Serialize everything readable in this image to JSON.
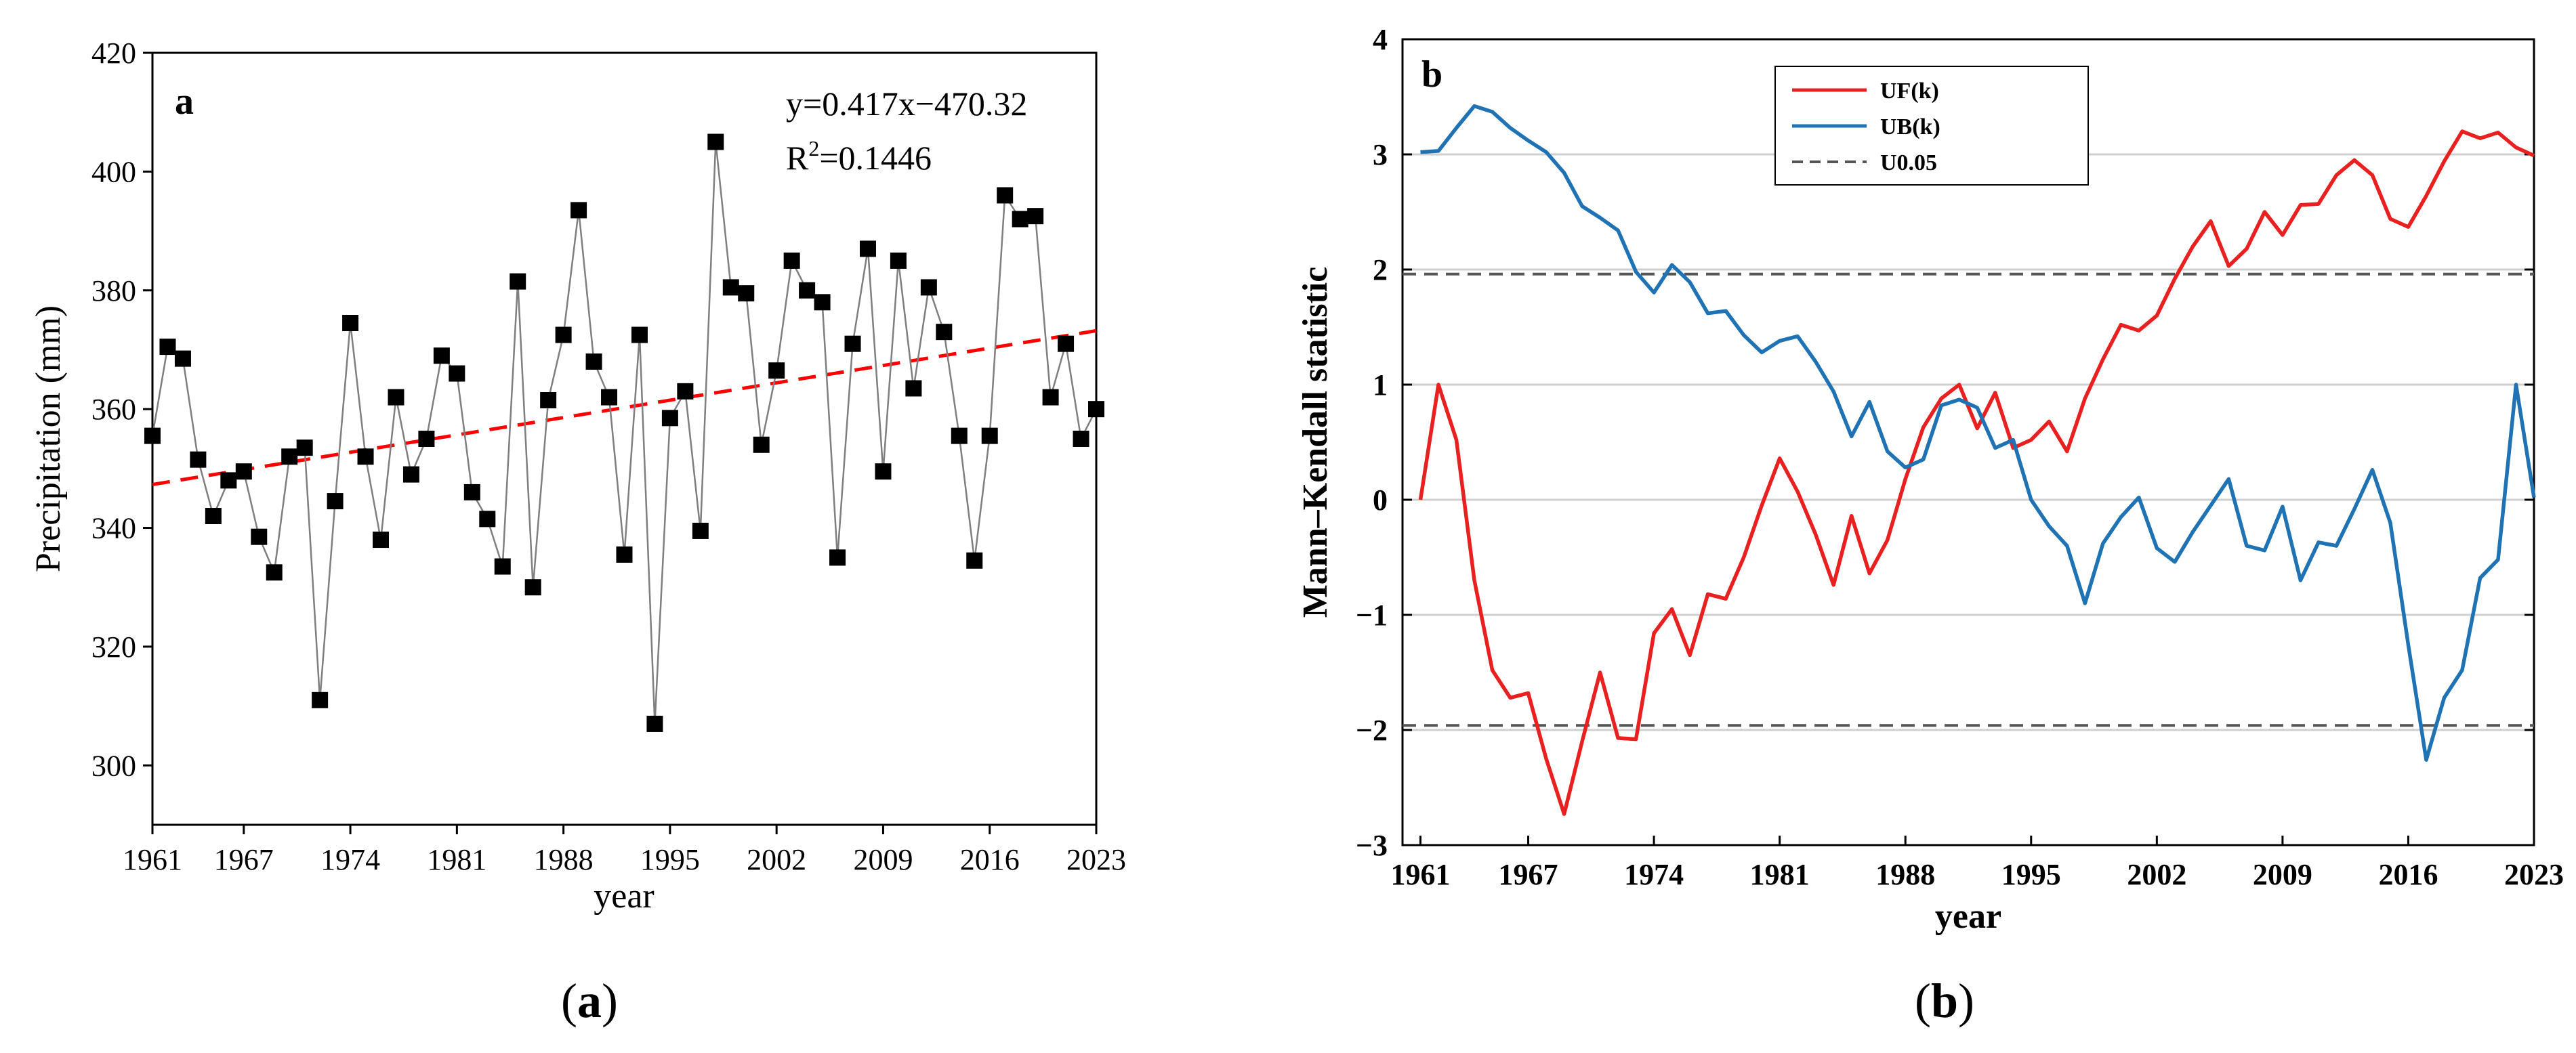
{
  "figure": {
    "captions": [
      "(a)",
      "(b)"
    ],
    "caption_letters": [
      "a",
      "b"
    ]
  },
  "chart_data": [
    {
      "type": "scatter",
      "panel_label": "a",
      "xlabel": "year",
      "ylabel": "Precipitation (mm)",
      "xlim": [
        1961,
        2023
      ],
      "ylim": [
        290,
        420
      ],
      "xticks": [
        1961,
        1967,
        1974,
        1981,
        1988,
        1995,
        2002,
        2009,
        2016,
        2023
      ],
      "yticks": [
        300,
        320,
        340,
        360,
        380,
        400,
        420
      ],
      "equation": "y=0.417x−470.32",
      "r2_prefix": "R",
      "r2_sup": "2",
      "r2_value": "=0.1446",
      "colors": {
        "series": "#000000",
        "line": "#7f7f7f",
        "trend": "#ff0000"
      },
      "series": [
        {
          "name": "Precipitation",
          "x": [
            1961,
            1962,
            1963,
            1964,
            1965,
            1966,
            1967,
            1968,
            1969,
            1970,
            1971,
            1972,
            1973,
            1974,
            1975,
            1976,
            1977,
            1978,
            1979,
            1980,
            1981,
            1982,
            1983,
            1984,
            1985,
            1986,
            1987,
            1988,
            1989,
            1990,
            1991,
            1992,
            1993,
            1994,
            1995,
            1996,
            1997,
            1998,
            1999,
            2000,
            2001,
            2002,
            2003,
            2004,
            2005,
            2006,
            2007,
            2008,
            2009,
            2010,
            2011,
            2012,
            2013,
            2014,
            2015,
            2016,
            2017,
            2018,
            2019,
            2020,
            2021,
            2022,
            2023
          ],
          "values": [
            355.5,
            370.5,
            368.5,
            351.5,
            342,
            348,
            349.5,
            338.5,
            332.5,
            352,
            353.5,
            311,
            344.5,
            374.5,
            352,
            338,
            362,
            349,
            355,
            369,
            366,
            346,
            341.5,
            333.5,
            381.5,
            330,
            361.5,
            372.5,
            393.5,
            368,
            362,
            335.5,
            372.5,
            307,
            358.5,
            363,
            339.5,
            405,
            380.5,
            379.5,
            354,
            366.5,
            385,
            380,
            378,
            335,
            371,
            387,
            349.5,
            385,
            363.5,
            380.5,
            373,
            355.5,
            334.5,
            355.5,
            396,
            392,
            392.5,
            362,
            371,
            355,
            360
          ]
        }
      ],
      "trend": {
        "x": [
          1961,
          2023
        ],
        "y": [
          347.3,
          373.2
        ]
      }
    },
    {
      "type": "line",
      "panel_label": "b",
      "xlabel": "year",
      "ylabel": "Mann–Kendall statistic",
      "xlim": [
        1960,
        2023
      ],
      "ylim": [
        -3,
        4
      ],
      "xticks": [
        1961,
        1967,
        1974,
        1981,
        1988,
        1995,
        2002,
        2009,
        2016,
        2023
      ],
      "yticks": [
        -3,
        -2,
        -1,
        0,
        1,
        2,
        3,
        4
      ],
      "ytick_labels": [
        "−3",
        "−2",
        "−1",
        "0",
        "1",
        "2",
        "3",
        "4"
      ],
      "grid": true,
      "legend": "top-center",
      "thresholds": [
        1.96,
        -1.96
      ],
      "series": [
        {
          "name": "UF(k)",
          "color": "#e8201f",
          "x": [
            1961,
            1962,
            1963,
            1964,
            1965,
            1966,
            1967,
            1968,
            1969,
            1970,
            1971,
            1972,
            1973,
            1974,
            1975,
            1976,
            1977,
            1978,
            1979,
            1980,
            1981,
            1982,
            1983,
            1984,
            1985,
            1986,
            1987,
            1988,
            1989,
            1990,
            1991,
            1992,
            1993,
            1994,
            1995,
            1996,
            1997,
            1998,
            1999,
            2000,
            2001,
            2002,
            2003,
            2004,
            2005,
            2006,
            2007,
            2008,
            2009,
            2010,
            2011,
            2012,
            2013,
            2014,
            2015,
            2016,
            2017,
            2018,
            2019,
            2020,
            2021,
            2022,
            2023
          ],
          "values": [
            0,
            1,
            0.52,
            -0.7,
            -1.48,
            -1.72,
            -1.68,
            -2.25,
            -2.73,
            -2.1,
            -1.5,
            -2.07,
            -2.08,
            -1.16,
            -0.95,
            -1.35,
            -0.82,
            -0.86,
            -0.5,
            -0.05,
            0.36,
            0.07,
            -0.3,
            -0.74,
            -0.14,
            -0.64,
            -0.35,
            0.18,
            0.63,
            0.88,
            1,
            0.62,
            0.93,
            0.45,
            0.52,
            0.68,
            0.42,
            0.88,
            1.22,
            1.52,
            1.47,
            1.6,
            1.92,
            2.2,
            2.42,
            2.03,
            2.18,
            2.5,
            2.3,
            2.56,
            2.57,
            2.82,
            2.95,
            2.82,
            2.44,
            2.37,
            2.64,
            2.94,
            3.2,
            3.14,
            3.19,
            3.06,
            2.99
          ]
        },
        {
          "name": "UB(k)",
          "color": "#1f72b3",
          "x": [
            1961,
            1962,
            1963,
            1964,
            1965,
            1966,
            1967,
            1968,
            1969,
            1970,
            1971,
            1972,
            1973,
            1974,
            1975,
            1976,
            1977,
            1978,
            1979,
            1980,
            1981,
            1982,
            1983,
            1984,
            1985,
            1986,
            1987,
            1988,
            1989,
            1990,
            1991,
            1992,
            1993,
            1994,
            1995,
            1996,
            1997,
            1998,
            1999,
            2000,
            2001,
            2002,
            2003,
            2004,
            2005,
            2006,
            2007,
            2008,
            2009,
            2010,
            2011,
            2012,
            2013,
            2014,
            2015,
            2016,
            2017,
            2018,
            2019,
            2020,
            2021,
            2022,
            2023
          ],
          "values": [
            3.02,
            3.03,
            3.23,
            3.42,
            3.37,
            3.23,
            3.12,
            3.02,
            2.84,
            2.55,
            2.45,
            2.34,
            1.98,
            1.8,
            2.04,
            1.89,
            1.62,
            1.64,
            1.43,
            1.28,
            1.38,
            1.42,
            1.2,
            0.94,
            0.55,
            0.85,
            0.42,
            0.28,
            0.35,
            0.82,
            0.87,
            0.8,
            0.45,
            0.52,
            0,
            -0.23,
            -0.4,
            -0.9,
            -0.38,
            -0.15,
            0.02,
            -0.42,
            -0.54,
            -0.28,
            -0.05,
            0.18,
            -0.4,
            -0.44,
            -0.06,
            -0.7,
            -0.37,
            -0.4,
            -0.08,
            0.26,
            -0.2,
            -1.26,
            -2.26,
            -1.72,
            -1.48,
            -0.68,
            -0.52,
            1,
            0.02
          ]
        },
        {
          "name": "U0.05",
          "color": "#555555",
          "dashed": true,
          "values": [
            1.96,
            -1.96
          ]
        }
      ]
    }
  ]
}
